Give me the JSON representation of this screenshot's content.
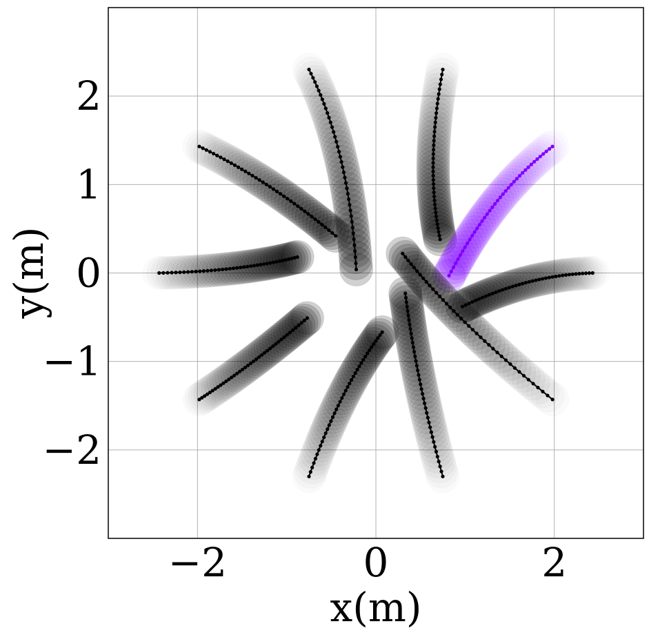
{
  "chart_data": {
    "type": "line",
    "title": "",
    "xlabel": "x(m)",
    "ylabel": "y(m)",
    "xlim": [
      -3,
      3
    ],
    "ylim": [
      -3,
      3
    ],
    "xticks": [
      -2,
      0,
      2
    ],
    "yticks": [
      -2,
      -1,
      0,
      1,
      2
    ],
    "xtick_labels": [
      "−2",
      "0",
      "2"
    ],
    "ytick_labels": [
      "−2",
      "−1",
      "0",
      "1",
      "2"
    ],
    "grid": true,
    "legend": "none",
    "colors": {
      "agent_default": "#000000",
      "agent_highlight": "#7f00ff",
      "grid": "#b0b0b0",
      "frame": "#000000"
    },
    "series": [
      {
        "highlight": false,
        "start": [
          -2.43,
          0.0
        ],
        "end": [
          -0.88,
          0.18
        ],
        "ctrl": [
          -1.5,
          0.02
        ]
      },
      {
        "highlight": false,
        "start": [
          -1.98,
          1.43
        ],
        "end": [
          -0.45,
          0.42
        ],
        "ctrl": [
          -1.2,
          1.05
        ]
      },
      {
        "highlight": false,
        "start": [
          -0.75,
          2.3
        ],
        "end": [
          -0.22,
          0.04
        ],
        "ctrl": [
          -0.3,
          1.4
        ]
      },
      {
        "highlight": false,
        "start": [
          0.75,
          2.3
        ],
        "end": [
          0.72,
          0.38
        ],
        "ctrl": [
          0.55,
          1.2
        ]
      },
      {
        "highlight": true,
        "start": [
          1.98,
          1.43
        ],
        "end": [
          0.82,
          -0.03
        ],
        "ctrl": [
          1.3,
          0.9
        ]
      },
      {
        "highlight": false,
        "start": [
          2.43,
          0.0
        ],
        "end": [
          0.97,
          -0.38
        ],
        "ctrl": [
          1.7,
          -0.02
        ]
      },
      {
        "highlight": false,
        "start": [
          1.98,
          -1.43
        ],
        "end": [
          0.3,
          0.22
        ],
        "ctrl": [
          0.9,
          -0.55
        ]
      },
      {
        "highlight": false,
        "start": [
          0.75,
          -2.3
        ],
        "end": [
          0.33,
          -0.23
        ],
        "ctrl": [
          0.45,
          -1.2
        ]
      },
      {
        "highlight": false,
        "start": [
          -0.75,
          -2.3
        ],
        "end": [
          0.07,
          -0.67
        ],
        "ctrl": [
          -0.4,
          -1.3
        ]
      },
      {
        "highlight": false,
        "start": [
          -1.98,
          -1.43
        ],
        "end": [
          -0.77,
          -0.51
        ],
        "ctrl": [
          -1.4,
          -1.05
        ]
      }
    ]
  }
}
